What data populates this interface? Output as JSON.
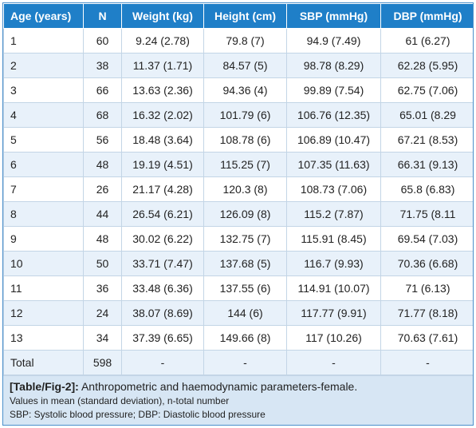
{
  "table": {
    "headers": [
      "Age (years)",
      "N",
      "Weight (kg)",
      "Height (cm)",
      "SBP (mmHg)",
      "DBP (mmHg)"
    ],
    "rows": [
      [
        "1",
        "60",
        "9.24 (2.78)",
        "79.8 (7)",
        "94.9 (7.49)",
        "61 (6.27)"
      ],
      [
        "2",
        "38",
        "11.37 (1.71)",
        "84.57 (5)",
        "98.78 (8.29)",
        "62.28 (5.95)"
      ],
      [
        "3",
        "66",
        "13.63 (2.36)",
        "94.36 (4)",
        "99.89 (7.54)",
        "62.75 (7.06)"
      ],
      [
        "4",
        "68",
        "16.32 (2.02)",
        "101.79 (6)",
        "106.76 (12.35)",
        "65.01 (8.29"
      ],
      [
        "5",
        "56",
        "18.48 (3.64)",
        "108.78 (6)",
        "106.89 (10.47)",
        "67.21 (8.53)"
      ],
      [
        "6",
        "48",
        "19.19 (4.51)",
        "115.25 (7)",
        "107.35 (11.63)",
        "66.31 (9.13)"
      ],
      [
        "7",
        "26",
        "21.17 (4.28)",
        "120.3 (8)",
        "108.73 (7.06)",
        "65.8 (6.83)"
      ],
      [
        "8",
        "44",
        "26.54 (6.21)",
        "126.09 (8)",
        "115.2 (7.87)",
        "71.75 (8.11"
      ],
      [
        "9",
        "48",
        "30.02 (6.22)",
        "132.75 (7)",
        "115.91 (8.45)",
        "69.54 (7.03)"
      ],
      [
        "10",
        "50",
        "33.71 (7.47)",
        "137.68 (5)",
        "116.7 (9.93)",
        "70.36 (6.68)"
      ],
      [
        "11",
        "36",
        "33.48 (6.36)",
        "137.55 (6)",
        "114.91 (10.07)",
        "71 (6.13)"
      ],
      [
        "12",
        "24",
        "38.07 (8.69)",
        "144 (6)",
        "117.77 (9.91)",
        "71.77 (8.18)"
      ],
      [
        "13",
        "34",
        "37.39 (6.65)",
        "149.66 (8)",
        "117 (10.26)",
        "70.63 (7.61)"
      ],
      [
        "Total",
        "598",
        "-",
        "-",
        "-",
        "-"
      ]
    ]
  },
  "caption": {
    "label": "[Table/Fig-2]:",
    "text": " Anthropometric and haemodynamic parameters-female.",
    "note1": "Values in mean (standard deviation), n-total number",
    "note2": "SBP: Systolic blood pressure; DBP: Diastolic blood pressure"
  },
  "colors": {
    "header_bg": "#1f7fc8",
    "alt_row_bg": "#e8f1fa",
    "caption_bg": "#d7e6f4",
    "border": "#c3d5e6"
  }
}
